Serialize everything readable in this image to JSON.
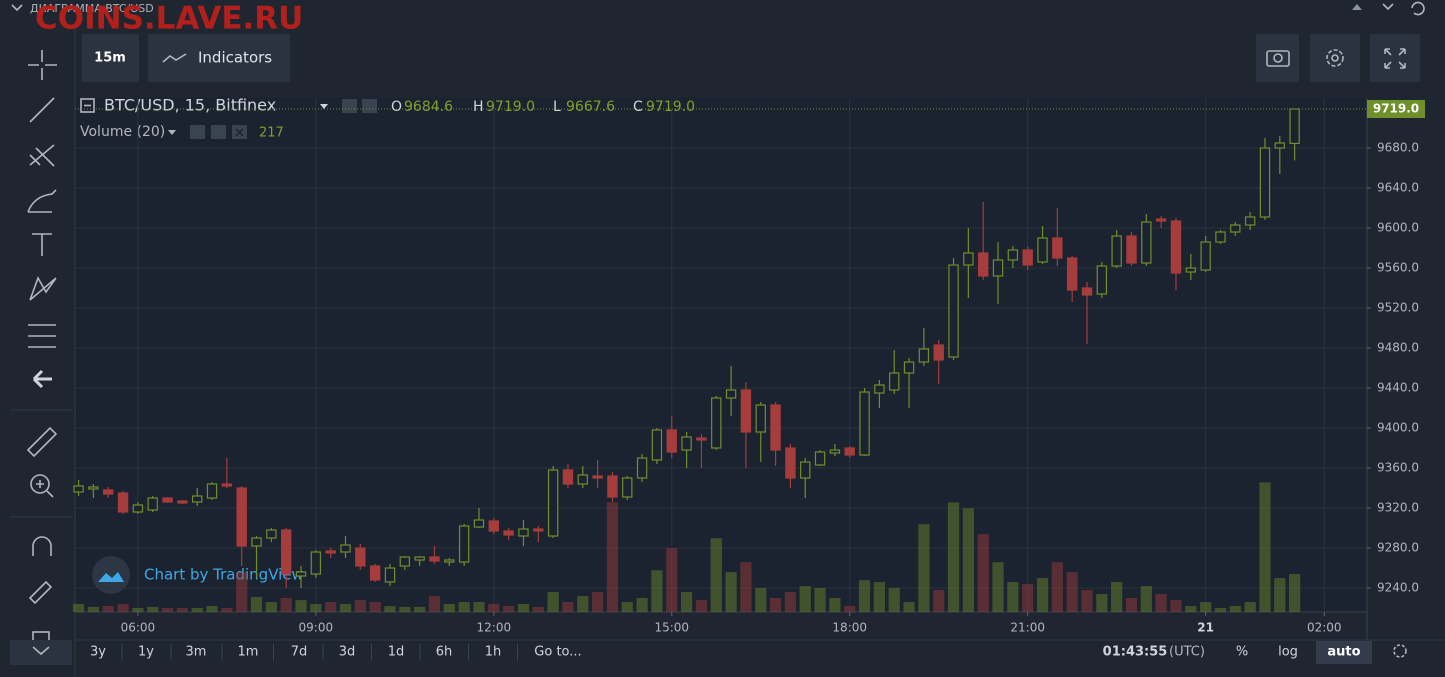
{
  "header": {
    "title": "ДИАГРАММА BTC/USD",
    "watermark": "COINS.LAVE.RU"
  },
  "toolbar": {
    "interval": "15m",
    "indicators": "Indicators"
  },
  "legend": {
    "symbol": "BTC/USD, 15, Bitfinex",
    "ohlc": [
      {
        "key": "O",
        "value": "9684.6"
      },
      {
        "key": "H",
        "value": "9719.0"
      },
      {
        "key": "L",
        "value": "9667.6"
      },
      {
        "key": "C",
        "value": "9719.0"
      }
    ],
    "volume_title": "Volume (20)"
  },
  "branding": "Chart by TradingView",
  "chart_data": {
    "type": "candlestick",
    "x": [
      5,
      5.25,
      5.5,
      5.75,
      6,
      6.25,
      6.5,
      6.75,
      7,
      7.25,
      7.5,
      7.75,
      8,
      8.25,
      8.5,
      8.75,
      9,
      9.25,
      9.5,
      9.75,
      10,
      10.25,
      10.5,
      10.75,
      11,
      11.25,
      11.5,
      11.75,
      12,
      12.25,
      12.5,
      12.75,
      13,
      13.25,
      13.5,
      13.75,
      14,
      14.25,
      14.5,
      14.75,
      15,
      15.25,
      15.5,
      15.75,
      16,
      16.25,
      16.5,
      16.75,
      17,
      17.25,
      17.5,
      17.75,
      18,
      18.25,
      18.5,
      18.75,
      19,
      19.25,
      19.5,
      19.75,
      20,
      20.25,
      20.5,
      20.75,
      21,
      21.25,
      21.5,
      21.75,
      22,
      22.25,
      22.5,
      22.75,
      23,
      23.25,
      23.5,
      23.75,
      24,
      24.25,
      24.5,
      24.75,
      25,
      25.25,
      25.5
    ],
    "open": [
      9336,
      9339,
      9338,
      9335,
      9316,
      9318,
      9330,
      9327,
      9326,
      9330,
      9344,
      9340,
      9282,
      9290,
      9298,
      9252,
      9254,
      9277,
      9276,
      9280,
      9262,
      9246,
      9262,
      9268,
      9271,
      9266,
      9266,
      9301,
      9307,
      9297,
      9292,
      9299,
      9292,
      9358,
      9344,
      9352,
      9352,
      9331,
      9350,
      9368,
      9398,
      9378,
      9390,
      9380,
      9430,
      9438,
      9396,
      9423,
      9380,
      9350,
      9363,
      9375,
      9380,
      9373,
      9435,
      9438,
      9455,
      9466,
      9483,
      9471,
      9563,
      9575,
      9552,
      9568,
      9578,
      9566,
      9590,
      9570,
      9540,
      9534,
      9562,
      9592,
      9565,
      9609,
      9607,
      9556,
      9558,
      9586,
      9596,
      9603,
      9611,
      9680,
      9684.6
    ],
    "high": [
      9348,
      9344,
      9341,
      9337,
      9326,
      9332,
      9331,
      9328,
      9340,
      9346,
      9370,
      9342,
      9292,
      9300,
      9300,
      9262,
      9278,
      9280,
      9292,
      9284,
      9264,
      9264,
      9272,
      9272,
      9282,
      9270,
      9304,
      9320,
      9310,
      9300,
      9308,
      9302,
      9362,
      9364,
      9362,
      9368,
      9356,
      9352,
      9374,
      9400,
      9412,
      9396,
      9394,
      9432,
      9462,
      9446,
      9426,
      9426,
      9384,
      9370,
      9378,
      9384,
      9382,
      9440,
      9448,
      9478,
      9470,
      9500,
      9488,
      9570,
      9600,
      9626,
      9586,
      9582,
      9582,
      9602,
      9620,
      9572,
      9546,
      9566,
      9598,
      9596,
      9614,
      9612,
      9610,
      9574,
      9592,
      9598,
      9606,
      9616,
      9690,
      9692,
      9719
    ],
    "low": [
      9332,
      9330,
      9330,
      9314,
      9314,
      9316,
      9325,
      9324,
      9322,
      9328,
      9340,
      9262,
      9250,
      9286,
      9240,
      9240,
      9250,
      9270,
      9270,
      9258,
      9246,
      9242,
      9258,
      9262,
      9264,
      9262,
      9262,
      9300,
      9294,
      9288,
      9282,
      9286,
      9290,
      9340,
      9340,
      9340,
      9326,
      9328,
      9346,
      9364,
      9370,
      9360,
      9360,
      9378,
      9412,
      9360,
      9366,
      9362,
      9340,
      9330,
      9362,
      9372,
      9370,
      9372,
      9420,
      9434,
      9420,
      9462,
      9444,
      9468,
      9530,
      9548,
      9524,
      9560,
      9558,
      9564,
      9562,
      9526,
      9484,
      9530,
      9560,
      9562,
      9562,
      9600,
      9538,
      9548,
      9556,
      9584,
      9592,
      9598,
      9608,
      9654,
      9667.6
    ],
    "close": [
      9342,
      9341,
      9334,
      9316,
      9323,
      9330,
      9326,
      9325,
      9332,
      9344,
      9342,
      9282,
      9290,
      9298,
      9254,
      9256,
      9276,
      9275,
      9283,
      9262,
      9248,
      9260,
      9271,
      9271,
      9267,
      9268,
      9302,
      9308,
      9297,
      9293,
      9299,
      9297,
      9358,
      9344,
      9353,
      9350,
      9331,
      9350,
      9370,
      9398,
      9376,
      9391,
      9388,
      9430,
      9438,
      9396,
      9423,
      9378,
      9350,
      9366,
      9376,
      9378,
      9373,
      9436,
      9443,
      9455,
      9466,
      9479,
      9468,
      9563,
      9575,
      9552,
      9568,
      9578,
      9563,
      9590,
      9570,
      9538,
      9533,
      9562,
      9592,
      9565,
      9606,
      9607,
      9555,
      9560,
      9586,
      9596,
      9603,
      9611,
      9680,
      9685,
      9719
    ],
    "volume": [
      46,
      29,
      34,
      46,
      23,
      29,
      23,
      23,
      23,
      34,
      23,
      228,
      86,
      57,
      80,
      68,
      46,
      57,
      46,
      68,
      57,
      34,
      29,
      29,
      91,
      46,
      57,
      57,
      46,
      34,
      46,
      29,
      114,
      57,
      91,
      114,
      627,
      57,
      80,
      239,
      365,
      114,
      68,
      422,
      228,
      285,
      137,
      80,
      114,
      148,
      137,
      80,
      34,
      182,
      171,
      137,
      57,
      502,
      125,
      627,
      593,
      445,
      285,
      171,
      160,
      194,
      285,
      228,
      125,
      103,
      171,
      80,
      148,
      103,
      68,
      34,
      57,
      23,
      34,
      57,
      741,
      194,
      217
    ],
    "up_color": "#6f8f2b",
    "down_color": "#a63c3c",
    "last_price_label": "9719.0",
    "xlim": [
      4.94,
      26.72
    ],
    "xticks": [
      {
        "value": 6,
        "label": "06:00"
      },
      {
        "value": 9,
        "label": "09:00"
      },
      {
        "value": 12,
        "label": "12:00"
      },
      {
        "value": 15,
        "label": "15:00"
      },
      {
        "value": 18,
        "label": "18:00"
      },
      {
        "value": 21,
        "label": "21:00"
      },
      {
        "value": 24,
        "label": "21"
      },
      {
        "value": 26,
        "label": "02:00"
      }
    ],
    "ylim": [
      9216,
      9730
    ],
    "yticks": [
      {
        "value": 9240,
        "label": "9240.0"
      },
      {
        "value": 9280,
        "label": "9280.0"
      },
      {
        "value": 9320,
        "label": "9320.0"
      },
      {
        "value": 9360,
        "label": "9360.0"
      },
      {
        "value": 9400,
        "label": "9400.0"
      },
      {
        "value": 9440,
        "label": "9440.0"
      },
      {
        "value": 9480,
        "label": "9480.0"
      },
      {
        "value": 9520,
        "label": "9520.0"
      },
      {
        "value": 9560,
        "label": "9560.0"
      },
      {
        "value": 9600,
        "label": "9600.0"
      },
      {
        "value": 9640,
        "label": "9640.0"
      },
      {
        "value": 9680,
        "label": "9680.0"
      }
    ],
    "volume_ylim": [
      0,
      2940
    ],
    "grid": true
  },
  "bottom_bar": {
    "ranges": [
      "3y",
      "1y",
      "3m",
      "1m",
      "7d",
      "3d",
      "1d",
      "6h",
      "1h",
      "Go to..."
    ],
    "clock": "01:43:55",
    "timezone": "(UTC)",
    "percent": "%",
    "log": "log",
    "auto": "auto"
  }
}
